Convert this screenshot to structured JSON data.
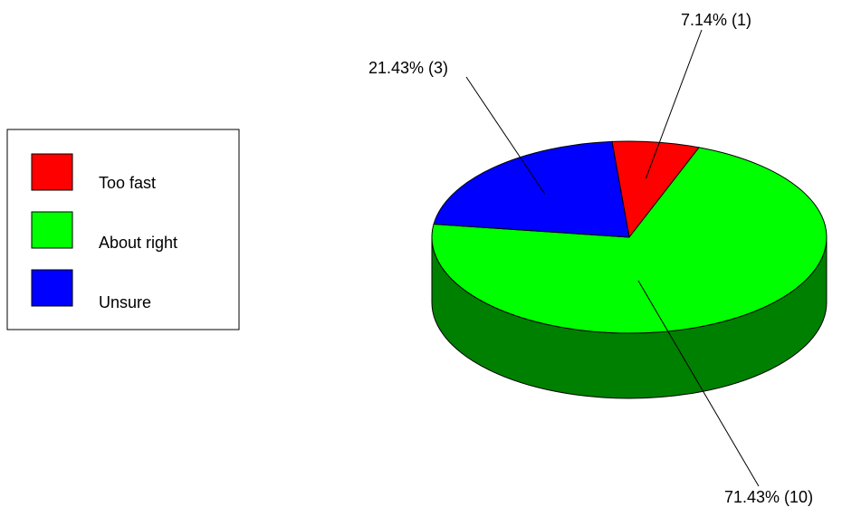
{
  "chart_data": {
    "type": "pie",
    "title": "",
    "legend_position": "left",
    "style": "3d",
    "slices": [
      {
        "name": "Too fast",
        "count": 1,
        "percent": 7.14,
        "label": "7.14% (1)",
        "color": "#ff0000",
        "side_color": "#b30000"
      },
      {
        "name": "About right",
        "count": 10,
        "percent": 71.43,
        "label": "71.43% (10)",
        "color": "#00ff00",
        "side_color": "#008000"
      },
      {
        "name": "Unsure",
        "count": 3,
        "percent": 21.43,
        "label": "21.43% (3)",
        "color": "#0000ff",
        "side_color": "#000080"
      }
    ]
  }
}
